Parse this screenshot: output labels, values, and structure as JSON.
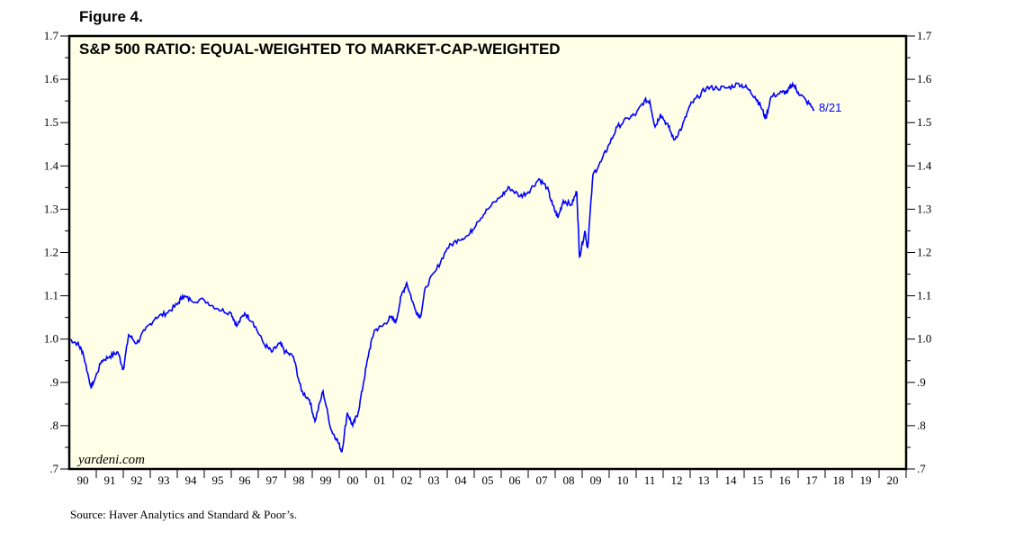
{
  "figure_label": "Figure 4.",
  "source": "Source: Haver Analytics and Standard & Poor’s.",
  "watermark": "yardeni.com",
  "colors": {
    "line": "#0000ff",
    "plot_bg": "#ffffe8",
    "frame": "#000000"
  },
  "chart_data": {
    "type": "line",
    "title": "S&P 500 RATIO: EQUAL-WEIGHTED TO MARKET-CAP-WEIGHTED",
    "xlabel": "",
    "ylabel": "",
    "xlim": [
      1990,
      2021
    ],
    "ylim": [
      0.7,
      1.7
    ],
    "grid": false,
    "y_ticks": [
      0.7,
      0.8,
      0.9,
      1.0,
      1.1,
      1.2,
      1.3,
      1.4,
      1.5,
      1.6,
      1.7
    ],
    "y_tick_labels": [
      ".7",
      ".8",
      ".9",
      "1.0",
      "1.1",
      "1.2",
      "1.3",
      "1.4",
      "1.5",
      "1.6",
      "1.7"
    ],
    "x_tick_labels": [
      "90",
      "91",
      "92",
      "93",
      "94",
      "95",
      "96",
      "97",
      "98",
      "99",
      "00",
      "01",
      "02",
      "03",
      "04",
      "05",
      "06",
      "07",
      "08",
      "09",
      "10",
      "11",
      "12",
      "13",
      "14",
      "15",
      "16",
      "17",
      "18",
      "19",
      "20"
    ],
    "annotation": "8/21",
    "series": [
      {
        "name": "Equal-weighted / Market-cap-weighted",
        "x": [
          1990.0,
          1990.3,
          1990.5,
          1990.8,
          1990.9,
          1991.2,
          1991.5,
          1991.8,
          1992.0,
          1992.2,
          1992.5,
          1992.8,
          1993.2,
          1993.6,
          1994.0,
          1994.2,
          1994.5,
          1995.0,
          1995.5,
          1996.0,
          1996.2,
          1996.5,
          1996.8,
          1997.2,
          1997.5,
          1997.8,
          1998.0,
          1998.3,
          1998.6,
          1998.9,
          1999.1,
          1999.4,
          1999.7,
          1999.9,
          2000.1,
          2000.3,
          2000.5,
          2000.7,
          2000.9,
          2001.1,
          2001.3,
          2001.6,
          2001.9,
          2002.1,
          2002.3,
          2002.5,
          2002.8,
          2003.0,
          2003.2,
          2003.6,
          2004.0,
          2004.4,
          2004.8,
          2005.1,
          2005.5,
          2006.0,
          2006.3,
          2006.7,
          2007.0,
          2007.4,
          2007.7,
          2007.9,
          2008.1,
          2008.3,
          2008.6,
          2008.8,
          2008.9,
          2009.1,
          2009.2,
          2009.4,
          2009.7,
          2010.0,
          2010.3,
          2010.7,
          2011.0,
          2011.3,
          2011.5,
          2011.7,
          2011.9,
          2012.2,
          2012.4,
          2012.7,
          2013.0,
          2013.3,
          2013.6,
          2014.0,
          2014.4,
          2014.8,
          2015.1,
          2015.4,
          2015.6,
          2015.8,
          2016.0,
          2016.4,
          2016.6,
          2016.8,
          2017.0,
          2017.3,
          2017.6
        ],
        "values": [
          1.0,
          0.99,
          0.97,
          0.89,
          0.9,
          0.95,
          0.96,
          0.97,
          0.93,
          1.01,
          0.99,
          1.02,
          1.05,
          1.06,
          1.08,
          1.1,
          1.09,
          1.09,
          1.07,
          1.06,
          1.03,
          1.06,
          1.04,
          0.99,
          0.97,
          0.99,
          0.97,
          0.96,
          0.88,
          0.86,
          0.81,
          0.88,
          0.79,
          0.77,
          0.74,
          0.83,
          0.8,
          0.83,
          0.9,
          0.97,
          1.02,
          1.03,
          1.05,
          1.04,
          1.1,
          1.13,
          1.07,
          1.05,
          1.12,
          1.16,
          1.21,
          1.23,
          1.24,
          1.27,
          1.3,
          1.33,
          1.35,
          1.33,
          1.34,
          1.37,
          1.35,
          1.31,
          1.28,
          1.32,
          1.31,
          1.34,
          1.19,
          1.25,
          1.21,
          1.38,
          1.41,
          1.45,
          1.49,
          1.51,
          1.52,
          1.55,
          1.55,
          1.49,
          1.52,
          1.49,
          1.46,
          1.49,
          1.54,
          1.56,
          1.58,
          1.58,
          1.58,
          1.59,
          1.58,
          1.56,
          1.54,
          1.51,
          1.56,
          1.57,
          1.57,
          1.59,
          1.57,
          1.55,
          1.53
        ]
      }
    ]
  }
}
